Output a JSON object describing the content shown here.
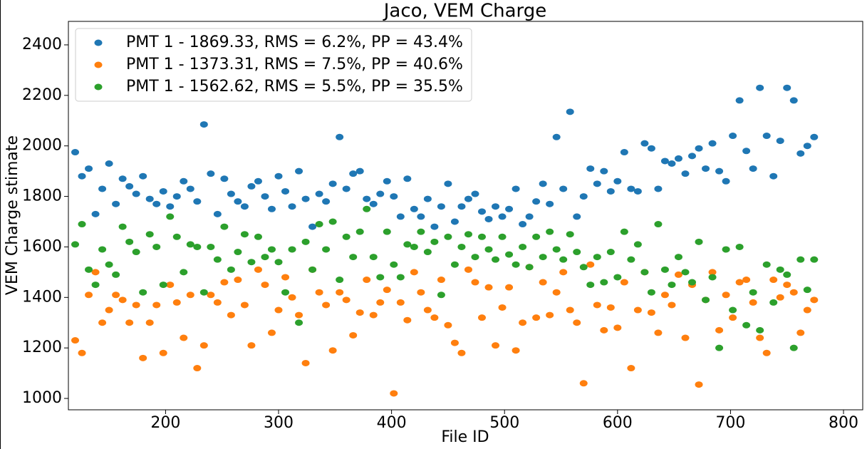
{
  "chart_data": {
    "type": "scatter",
    "title": "Jaco, VEM Charge",
    "xlabel": "File ID",
    "ylabel": "VEM Charge stimate",
    "legend": "upper left",
    "xlim": [
      114,
      817
    ],
    "ylim": [
      955,
      2493
    ],
    "xticks": [
      200,
      300,
      400,
      500,
      600,
      700,
      800
    ],
    "yticks": [
      1000,
      1200,
      1400,
      1600,
      1800,
      2000,
      2200,
      2400
    ],
    "x": [
      120,
      126,
      132,
      138,
      144,
      150,
      156,
      162,
      168,
      174,
      180,
      186,
      192,
      198,
      204,
      210,
      216,
      222,
      228,
      234,
      240,
      246,
      252,
      258,
      264,
      270,
      276,
      282,
      288,
      294,
      300,
      306,
      312,
      318,
      324,
      330,
      336,
      342,
      348,
      354,
      360,
      366,
      372,
      378,
      384,
      390,
      396,
      402,
      408,
      414,
      420,
      426,
      432,
      438,
      444,
      450,
      456,
      462,
      468,
      474,
      480,
      486,
      492,
      498,
      504,
      510,
      516,
      522,
      528,
      534,
      540,
      546,
      552,
      558,
      564,
      570,
      576,
      582,
      588,
      594,
      600,
      606,
      612,
      618,
      624,
      630,
      636,
      642,
      648,
      654,
      660,
      666,
      672,
      678,
      684,
      690,
      696,
      702,
      708,
      714,
      720,
      726,
      732,
      738,
      744,
      750,
      756,
      762,
      768,
      774
    ],
    "series": [
      {
        "name": "PMT 1 - 1869.33, RMS = 6.2%, PP = 43.4%",
        "color": "#1f77b4",
        "values": [
          1975,
          1880,
          1910,
          1730,
          1830,
          1930,
          1770,
          1870,
          1840,
          1810,
          1880,
          1790,
          1770,
          1820,
          1760,
          1800,
          1860,
          1830,
          1780,
          2085,
          1890,
          1730,
          1870,
          1810,
          1780,
          1760,
          1840,
          1860,
          1800,
          1750,
          1880,
          1820,
          1760,
          1900,
          1790,
          1680,
          1810,
          1780,
          1850,
          2035,
          1830,
          1890,
          1900,
          1790,
          1770,
          1810,
          1860,
          1800,
          1720,
          1870,
          1750,
          1720,
          1790,
          1680,
          1760,
          1850,
          1700,
          1760,
          1790,
          1810,
          1740,
          1710,
          1760,
          1720,
          1750,
          1830,
          1690,
          1720,
          1780,
          1850,
          1770,
          2035,
          1830,
          2135,
          1720,
          1800,
          1910,
          1850,
          1900,
          1820,
          1860,
          1975,
          1830,
          1820,
          2010,
          1990,
          1830,
          1940,
          1930,
          1950,
          1890,
          1960,
          1990,
          1910,
          2010,
          1900,
          1860,
          2040,
          2180,
          1980,
          1910,
          2230,
          2040,
          1880,
          2020,
          2230,
          2180,
          1970,
          2000,
          2035
        ]
      },
      {
        "name": "PMT 1 - 1373.31, RMS = 7.5%, PP = 40.6%",
        "color": "#ff7f0e",
        "values": [
          1230,
          1180,
          1410,
          1500,
          1300,
          1350,
          1410,
          1390,
          1300,
          1370,
          1160,
          1300,
          1370,
          1180,
          1450,
          1380,
          1240,
          1410,
          1120,
          1210,
          1410,
          1380,
          1460,
          1330,
          1470,
          1370,
          1210,
          1510,
          1450,
          1260,
          1350,
          1480,
          1400,
          1330,
          1140,
          1510,
          1420,
          1370,
          1190,
          1420,
          1390,
          1250,
          1340,
          1470,
          1330,
          1380,
          1430,
          1020,
          1380,
          1310,
          1500,
          1420,
          1350,
          1320,
          1470,
          1290,
          1220,
          1180,
          1510,
          1460,
          1320,
          1440,
          1210,
          1360,
          1440,
          1190,
          1300,
          1520,
          1320,
          1460,
          1330,
          1420,
          1500,
          1350,
          1300,
          1060,
          1530,
          1370,
          1270,
          1360,
          1280,
          1460,
          1120,
          1350,
          1500,
          1340,
          1260,
          1410,
          1370,
          1490,
          1240,
          1450,
          1055,
          1390,
          1500,
          1270,
          1410,
          1320,
          1460,
          1470,
          1380,
          1240,
          1180,
          1470,
          1400,
          1450,
          1420,
          1260,
          1350,
          1390
        ]
      },
      {
        "name": "PMT 1 - 1562.62, RMS = 5.5%, PP = 35.5%",
        "color": "#2ca02c",
        "values": [
          1610,
          1690,
          1510,
          1450,
          1590,
          1530,
          1490,
          1680,
          1620,
          1580,
          1420,
          1650,
          1600,
          1450,
          1720,
          1640,
          1500,
          1610,
          1600,
          1420,
          1600,
          1550,
          1680,
          1510,
          1580,
          1650,
          1540,
          1640,
          1560,
          1590,
          1540,
          1420,
          1590,
          1300,
          1620,
          1510,
          1690,
          1590,
          1700,
          1470,
          1640,
          1560,
          1660,
          1750,
          1560,
          1480,
          1660,
          1530,
          1480,
          1610,
          1600,
          1660,
          1580,
          1620,
          1410,
          1640,
          1530,
          1600,
          1650,
          1560,
          1640,
          1590,
          1550,
          1640,
          1570,
          1530,
          1600,
          1520,
          1640,
          1560,
          1660,
          1590,
          1550,
          1650,
          1580,
          1520,
          1450,
          1560,
          1460,
          1580,
          1480,
          1660,
          1550,
          1610,
          1500,
          1420,
          1690,
          1510,
          1450,
          1560,
          1500,
          1460,
          1620,
          1390,
          1480,
          1200,
          1590,
          1350,
          1600,
          1290,
          1420,
          1270,
          1530,
          1380,
          1510,
          1490,
          1200,
          1550,
          1430,
          1550
        ]
      }
    ]
  }
}
